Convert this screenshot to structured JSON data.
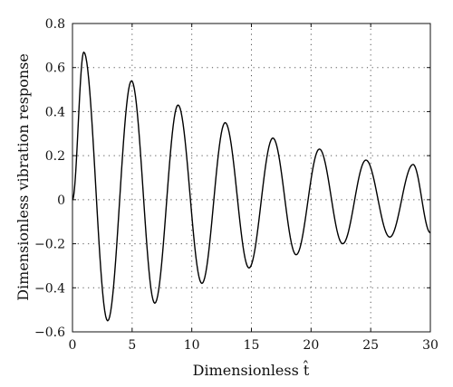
{
  "chart_data": {
    "type": "line",
    "title": "",
    "xlabel": "Dimensionless t̂",
    "ylabel": "Dimensionless vibration response",
    "xlim": [
      0,
      30
    ],
    "ylim": [
      -0.6,
      0.8
    ],
    "xticks": [
      0,
      5,
      10,
      15,
      20,
      25,
      30
    ],
    "yticks": [
      -0.6,
      -0.4,
      -0.2,
      0,
      0.2,
      0.4,
      0.6,
      0.8
    ],
    "xtick_labels": [
      "0",
      "5",
      "10",
      "15",
      "20",
      "25",
      "30"
    ],
    "ytick_labels": [
      "−0.6",
      "−0.4",
      "−0.2",
      "0",
      "0.2",
      "0.4",
      "0.6",
      "0.8"
    ],
    "grid": true,
    "legend": "none",
    "series": [
      {
        "color": "#000000",
        "x": [
          0,
          0.95,
          2.95,
          4.95,
          6.9,
          8.85,
          10.85,
          12.8,
          14.8,
          16.8,
          18.75,
          20.7,
          22.65,
          24.6,
          26.6,
          28.55,
          30
        ],
        "y": [
          0.0,
          0.67,
          -0.55,
          0.54,
          -0.47,
          0.43,
          -0.38,
          0.35,
          -0.31,
          0.28,
          -0.25,
          0.23,
          -0.2,
          0.18,
          -0.17,
          0.16,
          -0.15
        ]
      }
    ]
  }
}
